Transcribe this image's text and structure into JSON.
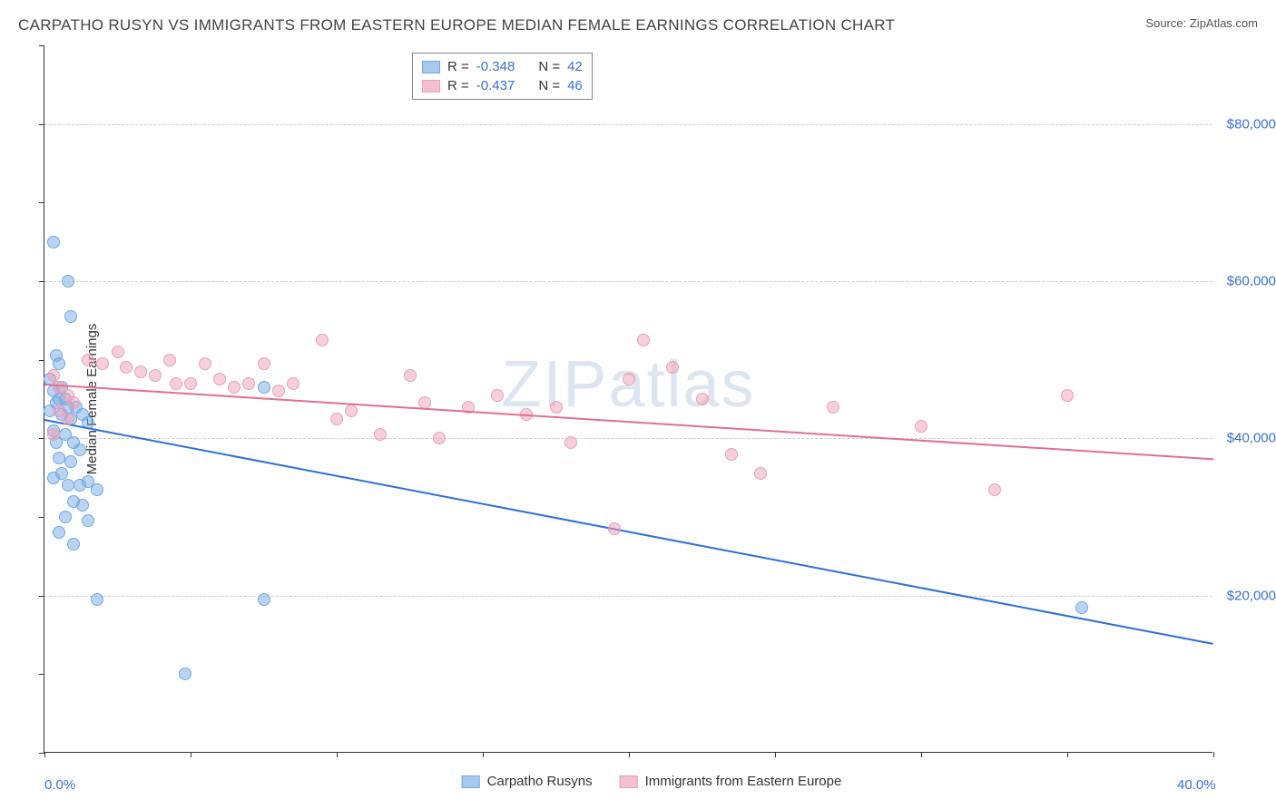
{
  "header": {
    "title": "CARPATHO RUSYN VS IMMIGRANTS FROM EASTERN EUROPE MEDIAN FEMALE EARNINGS CORRELATION CHART",
    "source_label": "Source:",
    "source_value": "ZipAtlas.com"
  },
  "chart": {
    "type": "scatter",
    "y_axis_title": "Median Female Earnings",
    "xlim": [
      0,
      40
    ],
    "ylim": [
      0,
      90000
    ],
    "x_labels": [
      {
        "v": 0,
        "t": "0.0%"
      },
      {
        "v": 40,
        "t": "40.0%"
      }
    ],
    "y_gridlines": [
      20000,
      40000,
      60000,
      80000
    ],
    "y_labels": [
      {
        "v": 20000,
        "t": "$20,000"
      },
      {
        "v": 40000,
        "t": "$40,000"
      },
      {
        "v": 60000,
        "t": "$60,000"
      },
      {
        "v": 80000,
        "t": "$80,000"
      }
    ],
    "x_ticks": [
      0,
      5,
      10,
      15,
      20,
      25,
      30,
      35,
      40
    ],
    "y_ticks": [
      0,
      10000,
      20000,
      30000,
      40000,
      50000,
      60000,
      70000,
      80000,
      90000
    ],
    "grid_color": "#cccccc",
    "axis_color": "#333333",
    "label_color": "#3a6fd8",
    "watermark": "ZIPatlas",
    "series": [
      {
        "name": "Carpatho Rusyns",
        "fill": "rgba(120,170,230,0.5)",
        "stroke": "#6fa8e8",
        "swatch_fill": "#a8c9ee",
        "swatch_stroke": "#6fa8e8",
        "marker_radius": 7,
        "r_value": "-0.348",
        "n_value": "42",
        "trend": {
          "x1": 0,
          "y1": 42500,
          "x2": 40,
          "y2": 14000,
          "color": "#2c6fd6",
          "width": 2
        },
        "points": [
          [
            0.3,
            65000
          ],
          [
            0.8,
            60000
          ],
          [
            0.9,
            55500
          ],
          [
            0.4,
            50500
          ],
          [
            0.5,
            49500
          ],
          [
            0.2,
            47500
          ],
          [
            0.6,
            46500
          ],
          [
            0.3,
            46000
          ],
          [
            0.5,
            45000
          ],
          [
            0.7,
            45000
          ],
          [
            0.4,
            44500
          ],
          [
            0.8,
            44000
          ],
          [
            0.2,
            43500
          ],
          [
            0.6,
            43000
          ],
          [
            0.9,
            42500
          ],
          [
            1.1,
            44000
          ],
          [
            1.3,
            43000
          ],
          [
            1.5,
            42000
          ],
          [
            0.3,
            41000
          ],
          [
            0.7,
            40500
          ],
          [
            0.4,
            39500
          ],
          [
            1.0,
            39500
          ],
          [
            1.2,
            38500
          ],
          [
            0.5,
            37500
          ],
          [
            0.9,
            37000
          ],
          [
            0.6,
            35500
          ],
          [
            0.3,
            35000
          ],
          [
            0.8,
            34000
          ],
          [
            1.2,
            34000
          ],
          [
            1.5,
            34500
          ],
          [
            1.8,
            33500
          ],
          [
            1.0,
            32000
          ],
          [
            1.3,
            31500
          ],
          [
            0.7,
            30000
          ],
          [
            1.5,
            29500
          ],
          [
            0.5,
            28000
          ],
          [
            1.0,
            26500
          ],
          [
            1.8,
            19500
          ],
          [
            4.8,
            10000
          ],
          [
            7.5,
            46500
          ],
          [
            7.5,
            19500
          ],
          [
            35.5,
            18500
          ]
        ]
      },
      {
        "name": "Immigrants from Eastern Europe",
        "fill": "rgba(240,160,180,0.5)",
        "stroke": "#e8a0b8",
        "swatch_fill": "#f4c0d0",
        "swatch_stroke": "#e8a0b8",
        "marker_radius": 7,
        "r_value": "-0.437",
        "n_value": "46",
        "trend": {
          "x1": 0,
          "y1": 47000,
          "x2": 40,
          "y2": 37500,
          "color": "#e07090",
          "width": 2
        },
        "points": [
          [
            0.3,
            48000
          ],
          [
            0.5,
            46500
          ],
          [
            0.8,
            45500
          ],
          [
            1.0,
            44500
          ],
          [
            0.5,
            43500
          ],
          [
            0.8,
            42500
          ],
          [
            0.3,
            40500
          ],
          [
            1.5,
            50000
          ],
          [
            2.0,
            49500
          ],
          [
            2.5,
            51000
          ],
          [
            2.8,
            49000
          ],
          [
            3.3,
            48500
          ],
          [
            3.8,
            48000
          ],
          [
            4.3,
            50000
          ],
          [
            4.5,
            47000
          ],
          [
            5.0,
            47000
          ],
          [
            5.5,
            49500
          ],
          [
            6.0,
            47500
          ],
          [
            6.5,
            46500
          ],
          [
            7.0,
            47000
          ],
          [
            7.5,
            49500
          ],
          [
            8.0,
            46000
          ],
          [
            8.5,
            47000
          ],
          [
            9.5,
            52500
          ],
          [
            10.0,
            42500
          ],
          [
            10.5,
            43500
          ],
          [
            11.5,
            40500
          ],
          [
            12.5,
            48000
          ],
          [
            13.0,
            44500
          ],
          [
            13.5,
            40000
          ],
          [
            14.5,
            44000
          ],
          [
            15.5,
            45500
          ],
          [
            16.5,
            43000
          ],
          [
            17.5,
            44000
          ],
          [
            18.0,
            39500
          ],
          [
            19.5,
            28500
          ],
          [
            20.0,
            47500
          ],
          [
            20.5,
            52500
          ],
          [
            21.5,
            49000
          ],
          [
            22.5,
            45000
          ],
          [
            23.5,
            38000
          ],
          [
            24.5,
            35500
          ],
          [
            27.0,
            44000
          ],
          [
            30.0,
            41500
          ],
          [
            32.5,
            33500
          ],
          [
            35.0,
            45500
          ]
        ]
      }
    ],
    "stats_box": {
      "r_label": "R =",
      "n_label": "N ="
    },
    "bottom_legend": true
  }
}
